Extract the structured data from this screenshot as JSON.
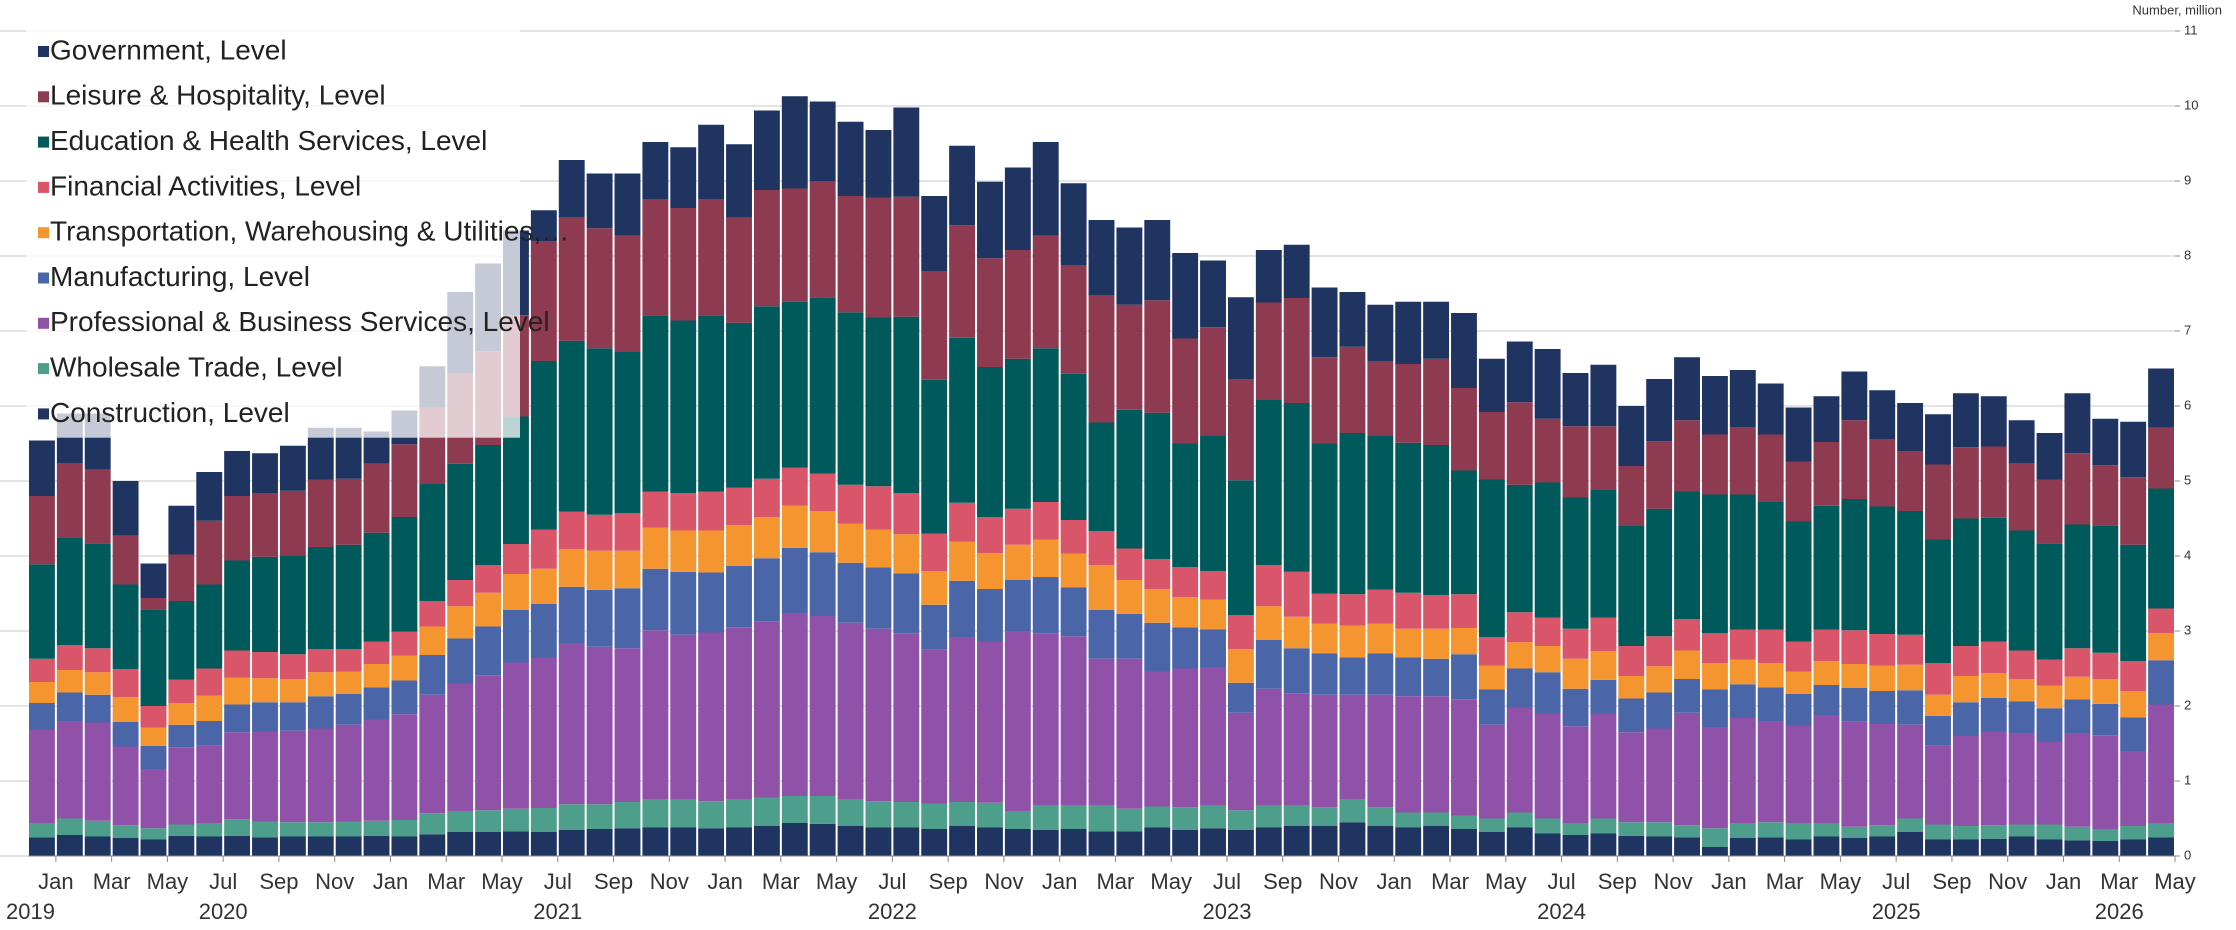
{
  "chart_data": {
    "type": "stacked_bar",
    "y_label": "Number, million",
    "categories": [
      "Jan",
      null,
      "Mar",
      null,
      "May",
      null,
      "Jul",
      null,
      "Sep",
      null,
      "Nov",
      null,
      "Jan",
      null,
      "Mar",
      null,
      "May",
      null,
      "Jul",
      null,
      "Sep",
      null,
      "Nov",
      null,
      "Jan",
      null,
      "Mar",
      null,
      "May",
      null,
      "Jul",
      null,
      "Sep",
      null,
      "Nov",
      null,
      "Jan",
      null,
      "Mar",
      null,
      "May",
      null,
      "Jul",
      null,
      "Sep",
      null,
      "Nov",
      null,
      "Jan",
      null,
      "Mar",
      null,
      "May",
      null,
      "Jul",
      null,
      "Sep",
      null,
      "Nov",
      null,
      "Jan",
      null,
      "Mar",
      null,
      "May",
      null,
      "Jul",
      null,
      "Sep",
      null,
      "Nov",
      null,
      "Jan",
      null,
      "Mar",
      null,
      "May"
    ],
    "year_labels": [
      "2019",
      null,
      null,
      null,
      null,
      null,
      "2020",
      null,
      null,
      null,
      null,
      null,
      null,
      null,
      null,
      null,
      null,
      null,
      "2021",
      null,
      null,
      null,
      null,
      null,
      null,
      null,
      null,
      null,
      null,
      null,
      "2022",
      null,
      null,
      null,
      null,
      null,
      null,
      null,
      null,
      null,
      null,
      null,
      "2023",
      null,
      null,
      null,
      null,
      null,
      null,
      null,
      null,
      null,
      null,
      null,
      "2024",
      null,
      null,
      null,
      null,
      null,
      null,
      null,
      null,
      null,
      null,
      null,
      "2025",
      null,
      null,
      null,
      null,
      null,
      null,
      null,
      "2026",
      null,
      null
    ],
    "ylim": [
      0,
      11
    ],
    "yticks": [
      0,
      1,
      2,
      3,
      4,
      5,
      6,
      7,
      8,
      9,
      10,
      11
    ],
    "grid": true,
    "legend": "top-left",
    "series": [
      {
        "name": "Government, Level",
        "color": "#1f3461",
        "values": [
          0.74,
          0.66,
          0.75,
          0.73,
          0.46,
          0.65,
          0.65,
          0.6,
          0.53,
          0.6,
          0.69,
          0.68,
          0.43,
          0.45,
          0.55,
          1.09,
          1.17,
          1.13,
          0.41,
          0.76,
          0.73,
          0.83,
          0.76,
          0.81,
          0.99,
          0.98,
          1.06,
          1.23,
          1.06,
          0.99,
          0.9,
          1.19,
          1.0,
          1.06,
          1.02,
          1.1,
          1.25,
          1.09,
          1.0,
          1.03,
          1.07,
          1.14,
          0.89,
          1.09,
          0.7,
          0.71,
          0.93,
          0.73,
          0.75,
          0.83,
          0.76,
          1.0,
          0.71,
          0.81,
          0.93,
          0.71,
          0.82,
          0.8,
          0.83,
          0.84,
          0.78,
          0.76,
          0.68,
          0.72,
          0.61,
          0.65,
          0.65,
          0.64,
          0.67,
          0.72,
          0.67,
          0.57,
          0.62,
          0.8,
          0.62,
          0.74,
          0.79
        ]
      },
      {
        "name": "Leisure & Hospitality, Level",
        "color": "#8e3a50",
        "values": [
          0.91,
          1.0,
          0.98,
          0.65,
          0.15,
          0.62,
          0.85,
          0.86,
          0.85,
          0.87,
          0.9,
          0.88,
          0.92,
          0.97,
          1.02,
          1.2,
          1.25,
          1.35,
          1.6,
          1.65,
          1.6,
          1.55,
          1.55,
          1.5,
          1.55,
          1.4,
          1.55,
          1.51,
          1.55,
          1.55,
          1.6,
          1.6,
          1.45,
          1.5,
          1.45,
          1.45,
          1.5,
          1.45,
          1.7,
          1.4,
          1.5,
          1.4,
          1.45,
          1.35,
          1.3,
          1.4,
          1.15,
          1.15,
          1.0,
          1.05,
          1.15,
          1.1,
          0.9,
          1.1,
          0.85,
          0.95,
          0.85,
          0.8,
          0.9,
          0.95,
          0.8,
          0.9,
          0.9,
          0.8,
          0.85,
          1.05,
          0.9,
          0.8,
          1.0,
          0.95,
          0.95,
          0.9,
          0.85,
          0.95,
          0.8,
          0.9,
          0.81
        ]
      },
      {
        "name": "Education & Health Services, Level",
        "color": "#005a5b",
        "values": [
          1.26,
          1.43,
          1.4,
          1.13,
          1.29,
          1.05,
          1.12,
          1.2,
          1.27,
          1.31,
          1.36,
          1.39,
          1.45,
          1.53,
          1.56,
          1.55,
          1.6,
          1.7,
          2.25,
          2.28,
          2.22,
          2.15,
          2.35,
          2.3,
          2.35,
          2.2,
          2.3,
          2.21,
          2.35,
          2.3,
          2.25,
          2.35,
          2.05,
          2.2,
          2.0,
          2.0,
          2.05,
          1.95,
          1.45,
          1.85,
          1.95,
          1.65,
          1.8,
          1.8,
          2.2,
          2.25,
          2.0,
          2.15,
          2.05,
          2.0,
          2.0,
          1.65,
          2.1,
          1.7,
          1.8,
          1.75,
          1.7,
          1.6,
          1.7,
          1.7,
          1.85,
          1.8,
          1.7,
          1.6,
          1.65,
          1.75,
          1.7,
          1.65,
          1.65,
          1.7,
          1.65,
          1.6,
          1.55,
          1.65,
          1.7,
          1.55,
          1.6
        ]
      },
      {
        "name": "Financial Activities, Level",
        "color": "#d9566a",
        "values": [
          0.31,
          0.33,
          0.32,
          0.37,
          0.29,
          0.31,
          0.36,
          0.36,
          0.35,
          0.33,
          0.31,
          0.3,
          0.3,
          0.32,
          0.34,
          0.35,
          0.37,
          0.4,
          0.52,
          0.5,
          0.48,
          0.5,
          0.48,
          0.5,
          0.52,
          0.5,
          0.51,
          0.51,
          0.5,
          0.52,
          0.58,
          0.55,
          0.5,
          0.52,
          0.48,
          0.48,
          0.5,
          0.45,
          0.45,
          0.42,
          0.4,
          0.4,
          0.38,
          0.45,
          0.55,
          0.6,
          0.4,
          0.42,
          0.45,
          0.48,
          0.45,
          0.45,
          0.38,
          0.4,
          0.38,
          0.4,
          0.45,
          0.4,
          0.4,
          0.42,
          0.4,
          0.4,
          0.45,
          0.4,
          0.42,
          0.45,
          0.42,
          0.4,
          0.42,
          0.4,
          0.42,
          0.38,
          0.35,
          0.38,
          0.35,
          0.4,
          0.33
        ]
      },
      {
        "name": "Transportation, Warehousing & Utilities,…",
        "color": "#f59530",
        "values": [
          0.28,
          0.3,
          0.3,
          0.33,
          0.24,
          0.29,
          0.34,
          0.36,
          0.32,
          0.31,
          0.32,
          0.3,
          0.31,
          0.33,
          0.38,
          0.43,
          0.45,
          0.48,
          0.47,
          0.5,
          0.52,
          0.5,
          0.55,
          0.55,
          0.56,
          0.54,
          0.55,
          0.56,
          0.55,
          0.52,
          0.5,
          0.52,
          0.45,
          0.52,
          0.48,
          0.47,
          0.5,
          0.45,
          0.6,
          0.45,
          0.45,
          0.4,
          0.4,
          0.45,
          0.45,
          0.42,
          0.4,
          0.42,
          0.4,
          0.38,
          0.4,
          0.35,
          0.32,
          0.35,
          0.35,
          0.4,
          0.38,
          0.3,
          0.35,
          0.38,
          0.35,
          0.33,
          0.32,
          0.3,
          0.32,
          0.32,
          0.34,
          0.34,
          0.28,
          0.35,
          0.33,
          0.3,
          0.3,
          0.3,
          0.33,
          0.35,
          0.36
        ]
      },
      {
        "name": "Manufacturing, Level",
        "color": "#4a66a8",
        "values": [
          0.36,
          0.38,
          0.37,
          0.33,
          0.31,
          0.3,
          0.33,
          0.37,
          0.39,
          0.38,
          0.43,
          0.41,
          0.43,
          0.45,
          0.53,
          0.6,
          0.65,
          0.7,
          0.72,
          0.75,
          0.76,
          0.8,
          0.82,
          0.84,
          0.8,
          0.82,
          0.84,
          0.87,
          0.85,
          0.8,
          0.82,
          0.8,
          0.6,
          0.75,
          0.7,
          0.68,
          0.75,
          0.65,
          0.65,
          0.6,
          0.65,
          0.55,
          0.5,
          0.4,
          0.65,
          0.6,
          0.55,
          0.5,
          0.55,
          0.52,
          0.5,
          0.6,
          0.47,
          0.52,
          0.55,
          0.5,
          0.45,
          0.45,
          0.48,
          0.45,
          0.5,
          0.45,
          0.45,
          0.42,
          0.4,
          0.45,
          0.44,
          0.46,
          0.4,
          0.45,
          0.45,
          0.42,
          0.45,
          0.45,
          0.42,
          0.45,
          0.59
        ]
      },
      {
        "name": "Professional & Business Services, Level",
        "color": "#8f52a8",
        "values": [
          1.24,
          1.3,
          1.31,
          1.05,
          0.79,
          1.03,
          1.03,
          1.16,
          1.2,
          1.22,
          1.25,
          1.29,
          1.35,
          1.41,
          1.58,
          1.7,
          1.8,
          1.95,
          2.0,
          2.15,
          2.1,
          2.05,
          2.25,
          2.2,
          2.25,
          2.3,
          2.35,
          2.44,
          2.4,
          2.35,
          2.3,
          2.25,
          2.05,
          2.2,
          2.15,
          2.4,
          2.3,
          2.25,
          1.95,
          2.0,
          1.8,
          1.85,
          1.85,
          1.3,
          1.55,
          1.5,
          1.5,
          1.4,
          1.5,
          1.55,
          1.55,
          1.55,
          1.25,
          1.4,
          1.4,
          1.3,
          1.4,
          1.2,
          1.25,
          1.5,
          1.35,
          1.4,
          1.35,
          1.3,
          1.45,
          1.4,
          1.35,
          1.25,
          1.05,
          1.2,
          1.25,
          1.22,
          1.1,
          1.25,
          1.25,
          1.0,
          1.58
        ]
      },
      {
        "name": "Wholesale Trade, Level",
        "color": "#4d9e8a",
        "values": [
          0.19,
          0.22,
          0.21,
          0.17,
          0.15,
          0.15,
          0.18,
          0.22,
          0.21,
          0.19,
          0.19,
          0.2,
          0.2,
          0.22,
          0.28,
          0.28,
          0.29,
          0.3,
          0.32,
          0.34,
          0.33,
          0.35,
          0.38,
          0.37,
          0.36,
          0.37,
          0.38,
          0.36,
          0.37,
          0.36,
          0.35,
          0.34,
          0.34,
          0.32,
          0.33,
          0.24,
          0.32,
          0.32,
          0.35,
          0.3,
          0.28,
          0.3,
          0.3,
          0.26,
          0.3,
          0.27,
          0.25,
          0.3,
          0.25,
          0.2,
          0.18,
          0.18,
          0.18,
          0.2,
          0.2,
          0.15,
          0.2,
          0.18,
          0.19,
          0.16,
          0.25,
          0.2,
          0.2,
          0.22,
          0.17,
          0.15,
          0.15,
          0.18,
          0.2,
          0.18,
          0.18,
          0.16,
          0.2,
          0.18,
          0.16,
          0.18,
          0.19
        ]
      },
      {
        "name": "Construction, Level",
        "color": "#1f3461",
        "values": [
          0.25,
          0.28,
          0.26,
          0.24,
          0.22,
          0.27,
          0.26,
          0.27,
          0.25,
          0.26,
          0.26,
          0.26,
          0.27,
          0.26,
          0.29,
          0.32,
          0.32,
          0.33,
          0.32,
          0.35,
          0.36,
          0.37,
          0.38,
          0.38,
          0.37,
          0.38,
          0.4,
          0.44,
          0.43,
          0.4,
          0.38,
          0.38,
          0.36,
          0.4,
          0.38,
          0.36,
          0.35,
          0.36,
          0.33,
          0.33,
          0.38,
          0.35,
          0.37,
          0.35,
          0.38,
          0.4,
          0.4,
          0.45,
          0.4,
          0.38,
          0.4,
          0.36,
          0.32,
          0.38,
          0.3,
          0.28,
          0.3,
          0.27,
          0.26,
          0.25,
          0.12,
          0.24,
          0.25,
          0.22,
          0.26,
          0.24,
          0.26,
          0.32,
          0.22,
          0.22,
          0.23,
          0.26,
          0.22,
          0.21,
          0.2,
          0.22,
          0.25
        ]
      }
    ]
  }
}
